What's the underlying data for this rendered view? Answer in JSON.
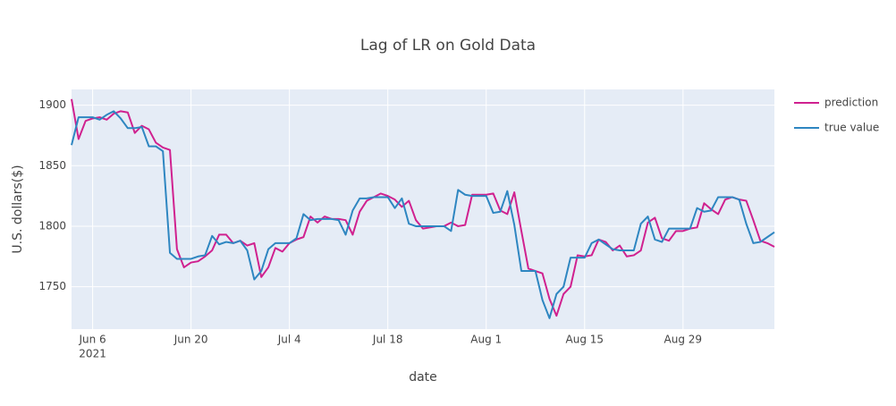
{
  "chart_data": {
    "type": "line",
    "title": "Lag of LR on Gold Data",
    "xlabel": "date",
    "ylabel": "U.S. dollars($)",
    "x": [
      "2021-06-03",
      "2021-06-04",
      "2021-06-05",
      "2021-06-06",
      "2021-06-07",
      "2021-06-08",
      "2021-06-09",
      "2021-06-10",
      "2021-06-11",
      "2021-06-12",
      "2021-06-13",
      "2021-06-14",
      "2021-06-15",
      "2021-06-16",
      "2021-06-17",
      "2021-06-18",
      "2021-06-19",
      "2021-06-20",
      "2021-06-21",
      "2021-06-22",
      "2021-06-23",
      "2021-06-24",
      "2021-06-25",
      "2021-06-26",
      "2021-06-27",
      "2021-06-28",
      "2021-06-29",
      "2021-06-30",
      "2021-07-01",
      "2021-07-02",
      "2021-07-03",
      "2021-07-04",
      "2021-07-05",
      "2021-07-06",
      "2021-07-07",
      "2021-07-08",
      "2021-07-09",
      "2021-07-10",
      "2021-07-11",
      "2021-07-12",
      "2021-07-13",
      "2021-07-14",
      "2021-07-15",
      "2021-07-16",
      "2021-07-17",
      "2021-07-18",
      "2021-07-19",
      "2021-07-20",
      "2021-07-21",
      "2021-07-22",
      "2021-07-23",
      "2021-07-24",
      "2021-07-25",
      "2021-07-26",
      "2021-07-27",
      "2021-07-28",
      "2021-07-29",
      "2021-07-30",
      "2021-07-31",
      "2021-08-01",
      "2021-08-02",
      "2021-08-03",
      "2021-08-04",
      "2021-08-05",
      "2021-08-06",
      "2021-08-07",
      "2021-08-08",
      "2021-08-09",
      "2021-08-10",
      "2021-08-11",
      "2021-08-12",
      "2021-08-13",
      "2021-08-14",
      "2021-08-15",
      "2021-08-16",
      "2021-08-17",
      "2021-08-18",
      "2021-08-19",
      "2021-08-20",
      "2021-08-21",
      "2021-08-22",
      "2021-08-23",
      "2021-08-24",
      "2021-08-25",
      "2021-08-26",
      "2021-08-27",
      "2021-08-28",
      "2021-08-29",
      "2021-08-30",
      "2021-08-31",
      "2021-09-01",
      "2021-09-02",
      "2021-09-03",
      "2021-09-04",
      "2021-09-05",
      "2021-09-06",
      "2021-09-07",
      "2021-09-08",
      "2021-09-09",
      "2021-09-10",
      "2021-09-11"
    ],
    "series": [
      {
        "name": "prediction",
        "color": "#d0218f",
        "values": [
          1905,
          1872,
          1887,
          1889,
          1890,
          1888,
          1893,
          1895,
          1894,
          1877,
          1883,
          1880,
          1869,
          1865,
          1863,
          1781,
          1766,
          1770,
          1771,
          1775,
          1780,
          1793,
          1793,
          1786,
          1788,
          1784,
          1786,
          1758,
          1766,
          1782,
          1779,
          1786,
          1789,
          1791,
          1808,
          1803,
          1808,
          1806,
          1806,
          1805,
          1793,
          1812,
          1821,
          1824,
          1827,
          1825,
          1822,
          1816,
          1821,
          1805,
          1798,
          1799,
          1800,
          1800,
          1803,
          1800,
          1801,
          1826,
          1826,
          1826,
          1827,
          1813,
          1810,
          1828,
          1796,
          1765,
          1763,
          1761,
          1740,
          1726,
          1744,
          1750,
          1776,
          1775,
          1776,
          1789,
          1787,
          1780,
          1784,
          1775,
          1776,
          1780,
          1803,
          1807,
          1790,
          1788,
          1796,
          1796,
          1798,
          1799,
          1819,
          1814,
          1810,
          1822,
          1824,
          1822,
          1821,
          1805,
          1788,
          1786,
          1783
        ]
      },
      {
        "name": "true value",
        "color": "#2e86c1",
        "values": [
          1867,
          1890,
          1890,
          1890,
          1888,
          1892,
          1895,
          1889,
          1881,
          1881,
          1882,
          1866,
          1866,
          1862,
          1778,
          1773,
          1773,
          1773,
          1775,
          1776,
          1792,
          1785,
          1787,
          1786,
          1788,
          1780,
          1756,
          1763,
          1781,
          1786,
          1786,
          1786,
          1790,
          1810,
          1805,
          1806,
          1806,
          1806,
          1805,
          1793,
          1813,
          1823,
          1823,
          1824,
          1824,
          1824,
          1815,
          1823,
          1802,
          1800,
          1800,
          1800,
          1800,
          1800,
          1796,
          1830,
          1826,
          1825,
          1825,
          1825,
          1811,
          1812,
          1829,
          1801,
          1763,
          1763,
          1763,
          1739,
          1724,
          1744,
          1750,
          1774,
          1774,
          1774,
          1786,
          1789,
          1785,
          1781,
          1780,
          1780,
          1780,
          1802,
          1808,
          1789,
          1787,
          1798,
          1798,
          1798,
          1798,
          1815,
          1812,
          1813,
          1824,
          1824,
          1824,
          1822,
          1802,
          1786,
          1787,
          1791,
          1795
        ]
      }
    ],
    "xlim": [
      "2021-06-03",
      "2021-09-11"
    ],
    "xticks": [
      {
        "value": "2021-06-06",
        "label": "Jun 6",
        "sublabel": "2021"
      },
      {
        "value": "2021-06-20",
        "label": "Jun 20"
      },
      {
        "value": "2021-07-04",
        "label": "Jul 4"
      },
      {
        "value": "2021-07-18",
        "label": "Jul 18"
      },
      {
        "value": "2021-08-01",
        "label": "Aug 1"
      },
      {
        "value": "2021-08-15",
        "label": "Aug 15"
      },
      {
        "value": "2021-08-29",
        "label": "Aug 29"
      }
    ],
    "ylim": [
      1715,
      1913
    ],
    "yticks": [
      1750,
      1800,
      1850,
      1900
    ],
    "grid": true
  }
}
